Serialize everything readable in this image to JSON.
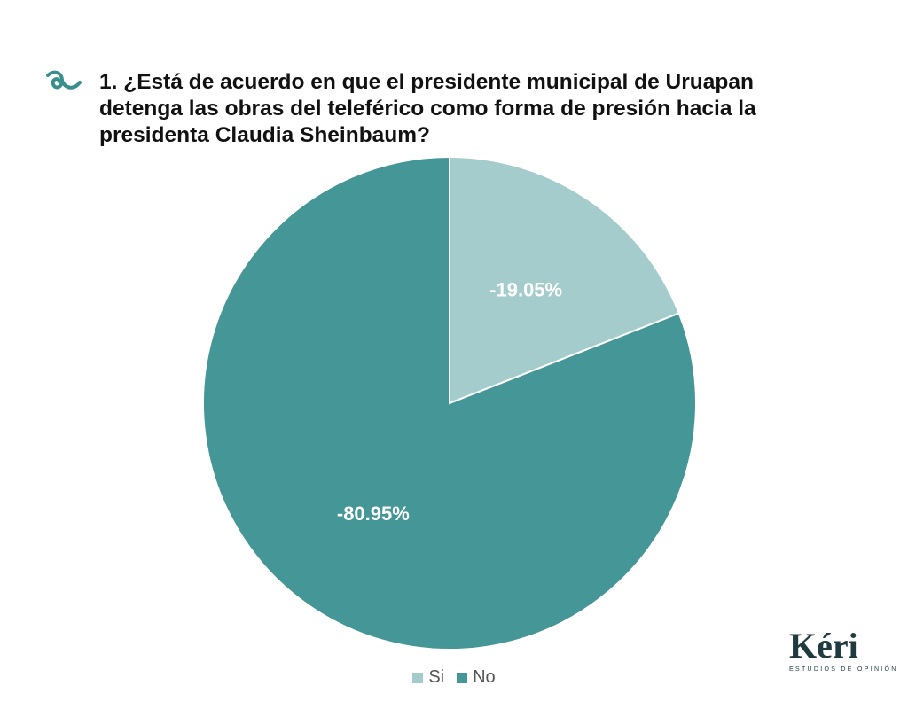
{
  "question": {
    "title": "1.  ¿Está de acuerdo en que el presidente municipal de Uruapan detenga las obras del teleférico como forma de presión hacia la presidenta Claudia Sheinbaum?",
    "icon": "spiral-icon",
    "icon_color": "#3a8f8c"
  },
  "chart_data": {
    "type": "pie",
    "title": "1.  ¿Está de acuerdo en que el presidente municipal de Uruapan detenga las obras del teleférico como forma de presión hacia la presidenta Claudia Sheinbaum?",
    "categories": [
      "Si",
      "No"
    ],
    "values": [
      19.05,
      80.95
    ],
    "labels": [
      "-19.05%",
      "-80.95%"
    ],
    "colors": [
      "#a5cccc",
      "#459697"
    ],
    "start": "12 o'clock, clockwise",
    "legend_position": "bottom-center"
  },
  "legend": {
    "items": [
      {
        "label": "Si",
        "color": "#a5cccc"
      },
      {
        "label": "No",
        "color": "#459697"
      }
    ]
  },
  "brand": {
    "name": "Kéri",
    "subtitle": "ESTUDIOS DE OPINIÓN",
    "color": "#1f3b3f",
    "accent": "#3a8f8c"
  }
}
